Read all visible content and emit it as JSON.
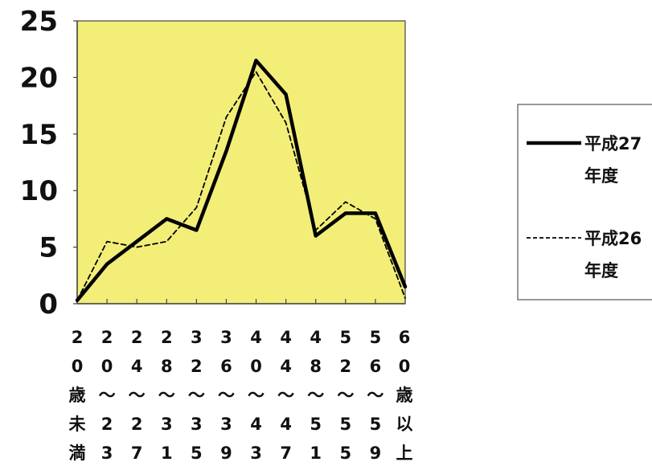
{
  "chart_data": {
    "type": "line",
    "title": "",
    "xlabel": "",
    "ylabel": "",
    "ylim": [
      0,
      25
    ],
    "yticks": [
      "0",
      "5",
      "10",
      "15",
      "20",
      "25"
    ],
    "categories": [
      "20歳未満",
      "20〜23",
      "24〜27",
      "28〜31",
      "32〜35",
      "36〜39",
      "40〜43",
      "44〜47",
      "48〜51",
      "52〜55",
      "56〜59",
      "60歳以上"
    ],
    "category_columns": [
      [
        "2",
        "0",
        "歳",
        "未",
        "満"
      ],
      [
        "2",
        "0",
        "〜",
        "2",
        "3"
      ],
      [
        "2",
        "4",
        "〜",
        "2",
        "7"
      ],
      [
        "2",
        "8",
        "〜",
        "3",
        "1"
      ],
      [
        "3",
        "2",
        "〜",
        "3",
        "5"
      ],
      [
        "3",
        "6",
        "〜",
        "3",
        "9"
      ],
      [
        "4",
        "0",
        "〜",
        "4",
        "3"
      ],
      [
        "4",
        "4",
        "〜",
        "4",
        "7"
      ],
      [
        "4",
        "8",
        "〜",
        "5",
        "1"
      ],
      [
        "5",
        "2",
        "〜",
        "5",
        "5"
      ],
      [
        "5",
        "6",
        "〜",
        "5",
        "9"
      ],
      [
        "6",
        "0",
        "歳",
        "以",
        "上"
      ]
    ],
    "series": [
      {
        "name": "平成27年度",
        "legend_lines": [
          "平成27",
          "年度"
        ],
        "style": "solid",
        "values": [
          0.3,
          3.5,
          5.5,
          7.5,
          6.5,
          13.5,
          21.5,
          18.5,
          6.0,
          8.0,
          8.0,
          1.5
        ]
      },
      {
        "name": "平成26年度",
        "legend_lines": [
          "平成26",
          "年度"
        ],
        "style": "dashed",
        "values": [
          0.3,
          5.5,
          5.0,
          5.5,
          8.5,
          16.5,
          20.5,
          16.0,
          6.5,
          9.0,
          7.5,
          0.5
        ]
      }
    ],
    "grid": false,
    "legend_position": "right",
    "colors": {
      "plot_background": "#f2ee78",
      "line": "#000000",
      "axis": "#444444"
    }
  }
}
